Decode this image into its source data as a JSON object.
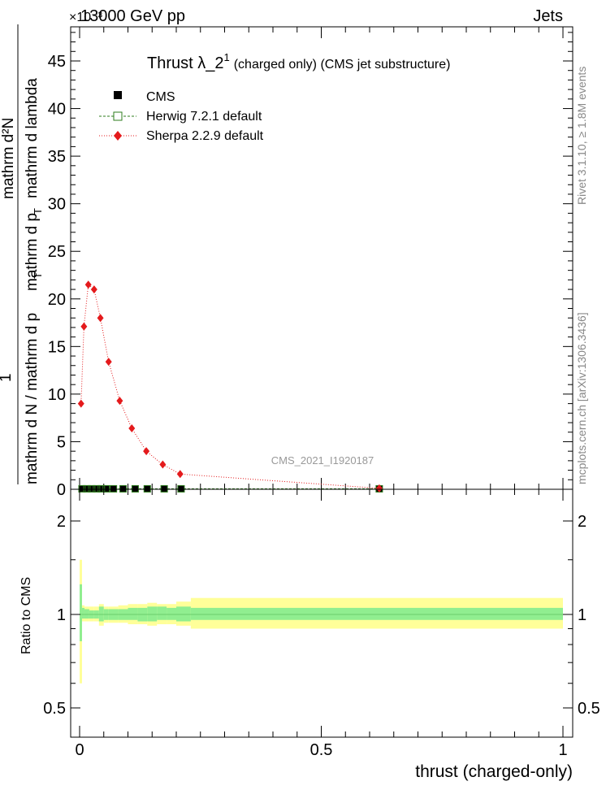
{
  "header": {
    "energy_label": "13000 GeV pp",
    "jets_label": "Jets",
    "exponent_label": "×10⁻³"
  },
  "side": {
    "rivet_label": "Rivet 3.1.10, ≥ 1.8M events",
    "mcplots_label": "mcplots.cern.ch [arXiv:1306.3436]"
  },
  "watermark": "CMS_2021_I1920187",
  "chart_data": [
    {
      "type": "line",
      "title_main": "Thrust λ_2",
      "title_sup": "1",
      "title_rest": "(charged only) (CMS jet substructure)",
      "ylabel_numerator": "mathrm d²N",
      "ylabel_denominator_a": "mathrm d N / mathrm d p",
      "ylabel_denominator_b": "mathrm d p",
      "ylabel_denominator_c": "mathrm d lambda",
      "ylabel_sub": "T",
      "ylabel_one": "1",
      "ylim": [
        0,
        48
      ],
      "xlim": [
        -0.015,
        1.02
      ],
      "yticks": [
        "0",
        "5",
        "10",
        "15",
        "20",
        "25",
        "30",
        "35",
        "40",
        "45"
      ],
      "legend_placement": "top-left",
      "series": [
        {
          "name": "CMS",
          "color": "#000000",
          "marker": "filled-square",
          "x": [
            0.005,
            0.015,
            0.025,
            0.035,
            0.045,
            0.055,
            0.07,
            0.09,
            0.115,
            0.14,
            0.175,
            0.21,
            0.62
          ],
          "y": [
            0.05,
            0.05,
            0.05,
            0.05,
            0.05,
            0.05,
            0.05,
            0.05,
            0.05,
            0.05,
            0.05,
            0.05,
            0.05
          ]
        },
        {
          "name": "Herwig 7.2.1 default",
          "color": "#2e7d1e",
          "marker": "open-square",
          "line": "dashed",
          "x": [
            0.005,
            0.015,
            0.025,
            0.035,
            0.045,
            0.055,
            0.07,
            0.09,
            0.115,
            0.14,
            0.175,
            0.21,
            0.62
          ],
          "y": [
            0.05,
            0.05,
            0.05,
            0.05,
            0.05,
            0.05,
            0.05,
            0.05,
            0.05,
            0.05,
            0.05,
            0.05,
            0.05
          ]
        },
        {
          "name": "Sherpa 2.2.9 default",
          "color": "#e41a1c",
          "marker": "diamond",
          "line": "dotted",
          "x": [
            0.003,
            0.009,
            0.018,
            0.03,
            0.043,
            0.06,
            0.083,
            0.108,
            0.138,
            0.172,
            0.208,
            0.62
          ],
          "y": [
            9.0,
            17.1,
            21.5,
            21.0,
            18.0,
            13.4,
            9.3,
            6.4,
            4.0,
            2.6,
            1.6,
            0.1
          ]
        }
      ]
    },
    {
      "type": "area",
      "ylabel": "Ratio to CMS",
      "xlabel": "thrust (charged-only)",
      "ylim": [
        0.35,
        2.25
      ],
      "xlim": [
        -0.015,
        1.02
      ],
      "yticks": [
        "0.5",
        "1",
        "2"
      ],
      "xticks": [
        "0",
        "0.5",
        "1"
      ],
      "reference": 1,
      "bands": {
        "edges": [
          0.0,
          0.005,
          0.01,
          0.02,
          0.03,
          0.04,
          0.05,
          0.06,
          0.08,
          0.1,
          0.12,
          0.14,
          0.16,
          0.18,
          0.2,
          0.23,
          1.0
        ],
        "inner_up": [
          1.25,
          1.05,
          1.04,
          1.03,
          1.03,
          1.06,
          1.04,
          1.04,
          1.04,
          1.05,
          1.05,
          1.06,
          1.06,
          1.05,
          1.06,
          1.05
        ],
        "inner_down": [
          0.82,
          0.97,
          0.97,
          0.97,
          0.97,
          0.95,
          0.96,
          0.96,
          0.96,
          0.96,
          0.95,
          0.95,
          0.96,
          0.96,
          0.95,
          0.96
        ],
        "outer_up": [
          1.5,
          1.07,
          1.06,
          1.06,
          1.06,
          1.08,
          1.06,
          1.06,
          1.07,
          1.08,
          1.08,
          1.09,
          1.08,
          1.08,
          1.1,
          1.13
        ],
        "outer_down": [
          0.6,
          0.95,
          0.95,
          0.95,
          0.95,
          0.92,
          0.94,
          0.94,
          0.94,
          0.93,
          0.93,
          0.92,
          0.93,
          0.93,
          0.92,
          0.9
        ],
        "inner_color": "#90ee90",
        "outer_color": "#ffff99"
      }
    }
  ]
}
